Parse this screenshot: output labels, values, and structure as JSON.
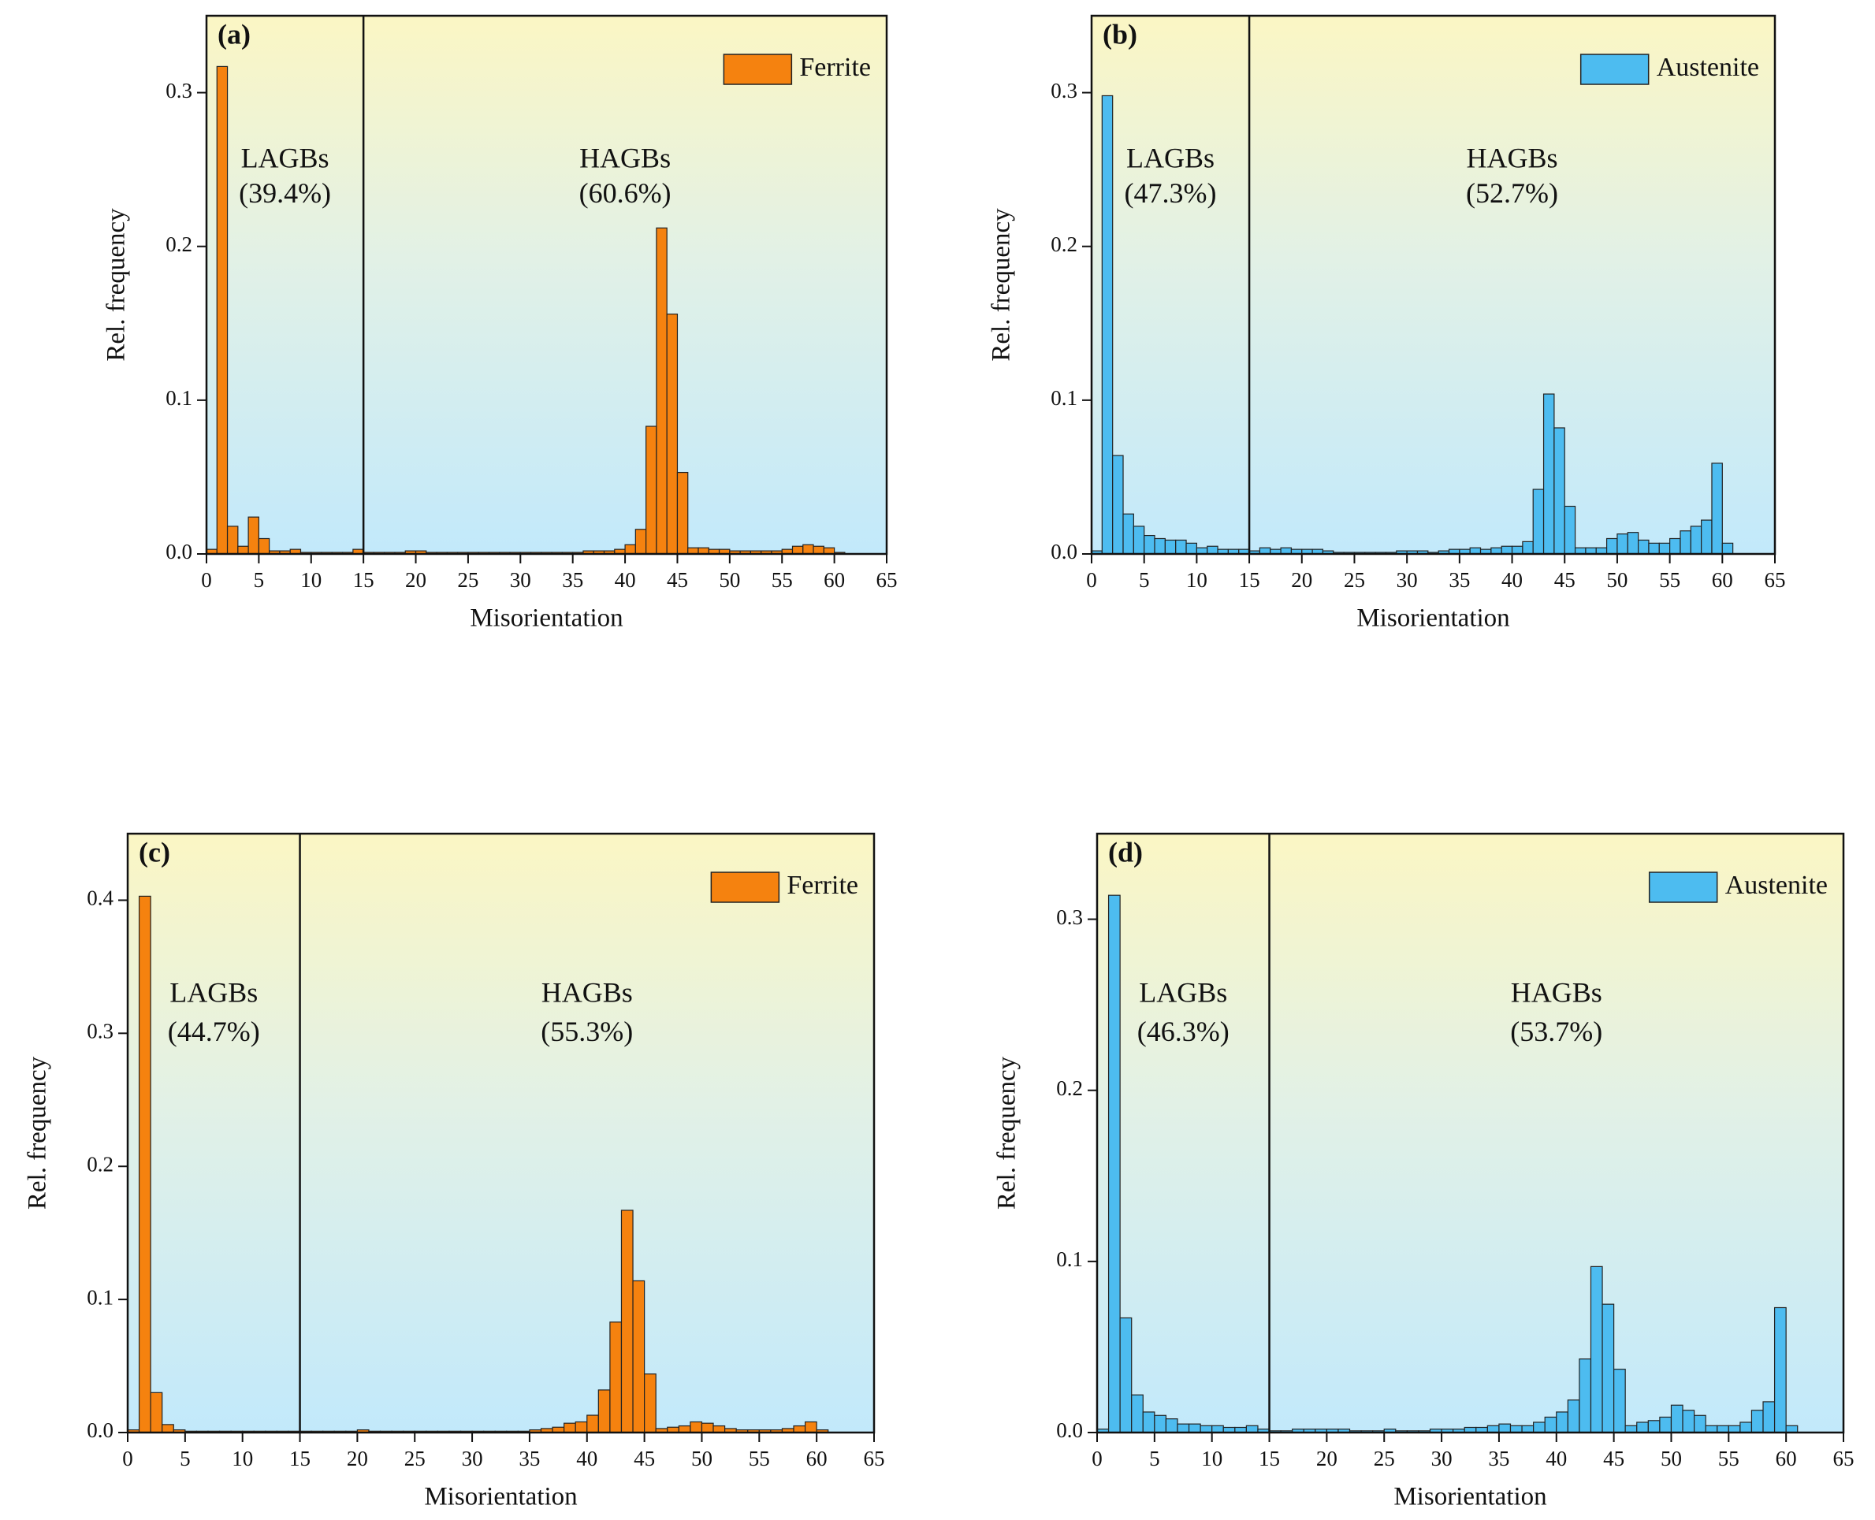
{
  "chart_data": [
    {
      "type": "histogram",
      "panel_label": "(a)",
      "xlabel": "Misorientation",
      "ylabel": "Rel. frequency",
      "annotations": [
        "LAGBs",
        "(39.4%)",
        "HAGBs",
        "(60.6%)"
      ],
      "threshold": 15,
      "legend": "upper right",
      "bins": [
        0,
        1,
        2,
        3,
        4,
        5,
        6,
        7,
        8,
        9,
        10,
        11,
        12,
        13,
        14,
        15,
        16,
        17,
        18,
        19,
        20,
        21,
        22,
        23,
        24,
        25,
        26,
        27,
        28,
        29,
        30,
        31,
        32,
        33,
        34,
        35,
        36,
        37,
        38,
        39,
        40,
        41,
        42,
        43,
        44,
        45,
        46,
        47,
        48,
        49,
        50,
        51,
        52,
        53,
        54,
        55,
        56,
        57,
        58,
        59,
        60,
        61
      ],
      "series": [
        {
          "name": "Ferrite",
          "color": "#f5820f",
          "values": [
            0.003,
            0.317,
            0.018,
            0.005,
            0.024,
            0.01,
            0.002,
            0.002,
            0.003,
            0.001,
            0.001,
            0.001,
            0.001,
            0.001,
            0.003,
            0.001,
            0.001,
            0.001,
            0.001,
            0.002,
            0.002,
            0.001,
            0.001,
            0.001,
            0.001,
            0.001,
            0.001,
            0.001,
            0.001,
            0.001,
            0.001,
            0.001,
            0.001,
            0.001,
            0.001,
            0.001,
            0.002,
            0.002,
            0.002,
            0.003,
            0.006,
            0.016,
            0.083,
            0.212,
            0.156,
            0.053,
            0.004,
            0.004,
            0.003,
            0.003,
            0.002,
            0.002,
            0.002,
            0.002,
            0.002,
            0.003,
            0.005,
            0.006,
            0.005,
            0.004,
            0.001
          ]
        }
      ],
      "xlim": [
        0,
        65
      ],
      "xticks": [
        0,
        5,
        10,
        15,
        20,
        25,
        30,
        35,
        40,
        45,
        50,
        55,
        60,
        65
      ],
      "ylim": [
        0,
        0.35
      ],
      "yticks": [
        {
          "value": 0,
          "label": "0.0"
        },
        0.1,
        0.2,
        0.3
      ]
    },
    {
      "type": "histogram",
      "panel_label": "(b)",
      "xlabel": "Misorientation",
      "ylabel": "Rel. frequency",
      "annotations": [
        "LAGBs",
        "(47.3%)",
        "HAGBs",
        "(52.7%)"
      ],
      "threshold": 15,
      "legend": "upper right",
      "bins": [
        0,
        1,
        2,
        3,
        4,
        5,
        6,
        7,
        8,
        9,
        10,
        11,
        12,
        13,
        14,
        15,
        16,
        17,
        18,
        19,
        20,
        21,
        22,
        23,
        24,
        25,
        26,
        27,
        28,
        29,
        30,
        31,
        32,
        33,
        34,
        35,
        36,
        37,
        38,
        39,
        40,
        41,
        42,
        43,
        44,
        45,
        46,
        47,
        48,
        49,
        50,
        51,
        52,
        53,
        54,
        55,
        56,
        57,
        58,
        59,
        60,
        61
      ],
      "series": [
        {
          "name": "Austenite",
          "color": "#4dbcf0",
          "values": [
            0.002,
            0.298,
            0.064,
            0.026,
            0.018,
            0.012,
            0.01,
            0.009,
            0.009,
            0.007,
            0.004,
            0.005,
            0.003,
            0.003,
            0.003,
            0.002,
            0.004,
            0.003,
            0.004,
            0.003,
            0.003,
            0.003,
            0.002,
            0.001,
            0.001,
            0.001,
            0.001,
            0.001,
            0.001,
            0.002,
            0.002,
            0.002,
            0.001,
            0.002,
            0.003,
            0.003,
            0.004,
            0.003,
            0.004,
            0.005,
            0.005,
            0.008,
            0.042,
            0.104,
            0.082,
            0.031,
            0.004,
            0.004,
            0.004,
            0.01,
            0.013,
            0.014,
            0.009,
            0.007,
            0.007,
            0.01,
            0.015,
            0.018,
            0.022,
            0.059,
            0.007
          ]
        }
      ],
      "xlim": [
        0,
        65
      ],
      "xticks": [
        0,
        5,
        10,
        15,
        20,
        25,
        30,
        35,
        40,
        45,
        50,
        55,
        60,
        65
      ],
      "ylim": [
        0,
        0.35
      ],
      "yticks": [
        {
          "value": 0,
          "label": "0.0"
        },
        0.1,
        0.2,
        0.3
      ]
    },
    {
      "type": "histogram",
      "panel_label": "(c)",
      "xlabel": "Misorientation",
      "ylabel": "Rel. frequency",
      "annotations": [
        "LAGBs",
        "(44.7%)",
        "HAGBs",
        "(55.3%)"
      ],
      "threshold": 15,
      "legend": "upper right",
      "bins": [
        0,
        1,
        2,
        3,
        4,
        5,
        6,
        7,
        8,
        9,
        10,
        11,
        12,
        13,
        14,
        15,
        16,
        17,
        18,
        19,
        20,
        21,
        22,
        23,
        24,
        25,
        26,
        27,
        28,
        29,
        30,
        31,
        32,
        33,
        34,
        35,
        36,
        37,
        38,
        39,
        40,
        41,
        42,
        43,
        44,
        45,
        46,
        47,
        48,
        49,
        50,
        51,
        52,
        53,
        54,
        55,
        56,
        57,
        58,
        59,
        60,
        61
      ],
      "series": [
        {
          "name": "Ferrite",
          "color": "#f5820f",
          "values": [
            0.002,
            0.403,
            0.03,
            0.006,
            0.002,
            0.001,
            0.001,
            0.001,
            0.001,
            0.001,
            0.001,
            0.001,
            0.001,
            0.001,
            0.001,
            0.001,
            0.001,
            0.001,
            0.001,
            0.001,
            0.002,
            0.001,
            0.001,
            0.001,
            0.001,
            0.001,
            0.001,
            0.001,
            0.001,
            0.001,
            0.001,
            0.001,
            0.001,
            0.001,
            0.001,
            0.002,
            0.003,
            0.004,
            0.007,
            0.008,
            0.013,
            0.032,
            0.083,
            0.167,
            0.114,
            0.044,
            0.003,
            0.004,
            0.005,
            0.008,
            0.007,
            0.005,
            0.003,
            0.002,
            0.002,
            0.002,
            0.002,
            0.003,
            0.005,
            0.008,
            0.002
          ]
        }
      ],
      "xlim": [
        0,
        65
      ],
      "xticks": [
        0,
        5,
        10,
        15,
        20,
        25,
        30,
        35,
        40,
        45,
        50,
        55,
        60,
        65
      ],
      "ylim": [
        0,
        0.45
      ],
      "yticks": [
        {
          "value": 0,
          "label": "0.0"
        },
        0.1,
        0.2,
        0.3,
        0.4
      ]
    },
    {
      "type": "histogram",
      "panel_label": "(d)",
      "xlabel": "Misorientation",
      "ylabel": "Rel. frequency",
      "annotations": [
        "LAGBs",
        "(46.3%)",
        "HAGBs",
        "(53.7%)"
      ],
      "threshold": 15,
      "legend": "upper right",
      "bins": [
        0,
        1,
        2,
        3,
        4,
        5,
        6,
        7,
        8,
        9,
        10,
        11,
        12,
        13,
        14,
        15,
        16,
        17,
        18,
        19,
        20,
        21,
        22,
        23,
        24,
        25,
        26,
        27,
        28,
        29,
        30,
        31,
        32,
        33,
        34,
        35,
        36,
        37,
        38,
        39,
        40,
        41,
        42,
        43,
        44,
        45,
        46,
        47,
        48,
        49,
        50,
        51,
        52,
        53,
        54,
        55,
        56,
        57,
        58,
        59,
        60,
        61
      ],
      "series": [
        {
          "name": "Austenite",
          "color": "#4dbcf0",
          "values": [
            0.002,
            0.314,
            0.067,
            0.022,
            0.012,
            0.01,
            0.008,
            0.005,
            0.005,
            0.004,
            0.004,
            0.003,
            0.003,
            0.004,
            0.002,
            0.001,
            0.001,
            0.002,
            0.002,
            0.002,
            0.002,
            0.002,
            0.001,
            0.001,
            0.001,
            0.002,
            0.001,
            0.001,
            0.001,
            0.002,
            0.002,
            0.002,
            0.003,
            0.003,
            0.004,
            0.005,
            0.004,
            0.004,
            0.006,
            0.009,
            0.012,
            0.019,
            0.043,
            0.097,
            0.075,
            0.037,
            0.004,
            0.006,
            0.007,
            0.009,
            0.016,
            0.013,
            0.01,
            0.004,
            0.004,
            0.004,
            0.006,
            0.013,
            0.018,
            0.073,
            0.004
          ]
        }
      ],
      "xlim": [
        0,
        65
      ],
      "xticks": [
        0,
        5,
        10,
        15,
        20,
        25,
        30,
        35,
        40,
        45,
        50,
        55,
        60,
        65
      ],
      "ylim": [
        0,
        0.35
      ],
      "yticks": [
        {
          "value": 0,
          "label": "0.0"
        },
        0.1,
        0.2,
        0.3
      ]
    }
  ]
}
